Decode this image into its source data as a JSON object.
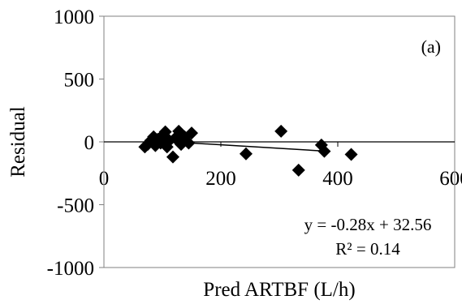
{
  "chart_data": {
    "type": "scatter",
    "title": "",
    "panel_label": "(a)",
    "xlabel": "Pred ARTBF (L/h)",
    "ylabel": "Residual",
    "xlim": [
      0,
      600
    ],
    "ylim": [
      -1000,
      1000
    ],
    "x_ticks": [
      0,
      200,
      400,
      600
    ],
    "x_tick_labels": [
      "0",
      "200",
      "400",
      "600"
    ],
    "y_ticks": [
      1000,
      500,
      0,
      -500,
      -1000
    ],
    "y_tick_labels": [
      "1000",
      "500",
      "0",
      "-500",
      "-1000"
    ],
    "grid": false,
    "marker": "diamond",
    "marker_color": "#000000",
    "series": [
      {
        "points": [
          {
            "x": 70,
            "y": -40
          },
          {
            "x": 75,
            "y": -20
          },
          {
            "x": 80,
            "y": 10
          },
          {
            "x": 85,
            "y": 40
          },
          {
            "x": 88,
            "y": -30
          },
          {
            "x": 92,
            "y": 20
          },
          {
            "x": 97,
            "y": -10
          },
          {
            "x": 100,
            "y": 50
          },
          {
            "x": 105,
            "y": 80
          },
          {
            "x": 108,
            "y": -40
          },
          {
            "x": 112,
            "y": 10
          },
          {
            "x": 118,
            "y": -120
          },
          {
            "x": 122,
            "y": 30
          },
          {
            "x": 128,
            "y": 85
          },
          {
            "x": 132,
            "y": -20
          },
          {
            "x": 138,
            "y": 40
          },
          {
            "x": 145,
            "y": -10
          },
          {
            "x": 150,
            "y": 70
          },
          {
            "x": 243,
            "y": -95
          },
          {
            "x": 303,
            "y": 85
          },
          {
            "x": 333,
            "y": -225
          },
          {
            "x": 372,
            "y": -25
          },
          {
            "x": 377,
            "y": -75
          },
          {
            "x": 423,
            "y": -100
          }
        ]
      }
    ],
    "trendline": {
      "type": "linear",
      "slope": -0.28,
      "intercept": 32.56,
      "x_range": [
        70,
        380
      ],
      "equation_label": "y = -0.28x + 32.56",
      "r2_label": "R² = 0.14"
    }
  }
}
